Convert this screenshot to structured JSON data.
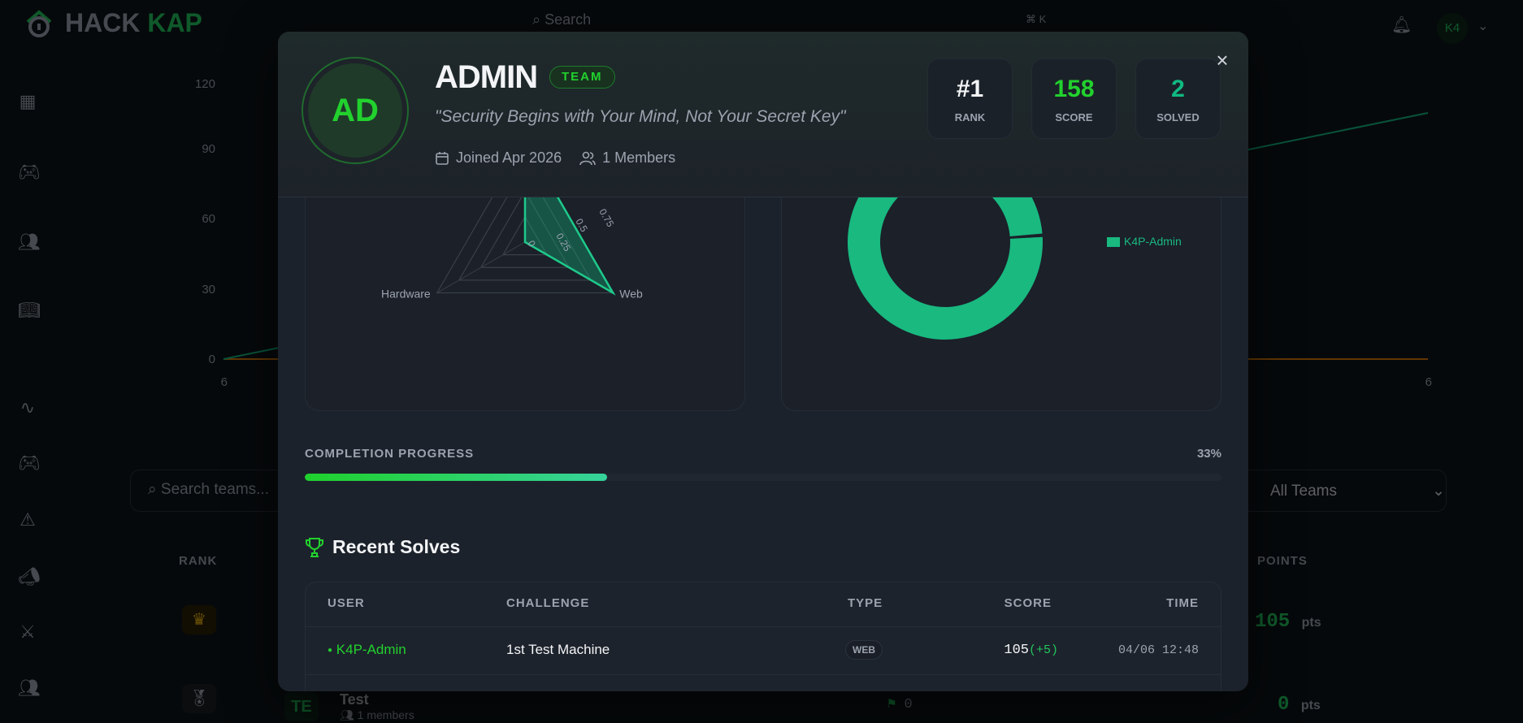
{
  "background": {
    "logo": {
      "part1": "HACK",
      "part2": "KAP"
    },
    "search_placeholder": "Search",
    "shortcut": "⌘ K",
    "user_initials": "K4",
    "sidebar_icons": [
      "dashboard-icon",
      "gamepad-icon",
      "users-icon",
      "book-icon",
      "activity-icon",
      "gamepad-icon",
      "alert-icon",
      "megaphone-icon",
      "swords-icon",
      "users-icon"
    ],
    "chart": {
      "y_ticks": [
        "120",
        "90",
        "60",
        "30",
        "0"
      ],
      "x_ticks": [
        "6",
        "6"
      ]
    },
    "team_search_placeholder": "Search teams...",
    "team_filter": "All Teams",
    "table": {
      "headers": {
        "rank": "RANK",
        "points": "POINTS"
      },
      "rows": [
        {
          "rank_icon": "crown-icon",
          "points": "105",
          "unit": "pts"
        },
        {
          "rank_icon": "medal-icon",
          "avatar": "TE",
          "name": "Test",
          "members": "1 members",
          "flags": "0",
          "points": "0",
          "unit": "pts"
        }
      ]
    }
  },
  "modal": {
    "avatar_initials": "AD",
    "name": "ADMIN",
    "badge": "TEAM",
    "motto": "\"Security Begins with Your Mind, Not Your Secret Key\"",
    "joined": "Joined Apr 2026",
    "members": "1 Members",
    "stats": [
      {
        "value": "#1",
        "label": "RANK",
        "color": "#f3f4f6"
      },
      {
        "value": "158",
        "label": "SCORE",
        "color": "#22d12e"
      },
      {
        "value": "2",
        "label": "SOLVED",
        "color": "#10b981"
      }
    ],
    "progress": {
      "label": "COMPLETION PROGRESS",
      "percent_text": "33%",
      "percent": 33
    },
    "recent_solves": {
      "title": "Recent Solves",
      "headers": {
        "user": "USER",
        "challenge": "CHALLENGE",
        "type": "TYPE",
        "score": "SCORE",
        "time": "TIME"
      },
      "rows": [
        {
          "user": "K4P-Admin",
          "challenge": "1st Test Machine",
          "type": "WEB",
          "score": "105",
          "bonus": "(+5)",
          "time": "04/06 12:48"
        }
      ]
    }
  },
  "chart_data": [
    {
      "type": "radar",
      "categories": [
        "Web",
        "Hardware"
      ],
      "values": [
        1,
        0
      ],
      "r_ticks": [
        "0",
        "0.25",
        "0.5",
        "0.75"
      ],
      "rlim": [
        0,
        1
      ],
      "color": "#10b981"
    },
    {
      "type": "doughnut",
      "labels": [
        "K4P-Admin"
      ],
      "values": [
        100
      ],
      "legend": "right",
      "color": "#19b980"
    }
  ]
}
